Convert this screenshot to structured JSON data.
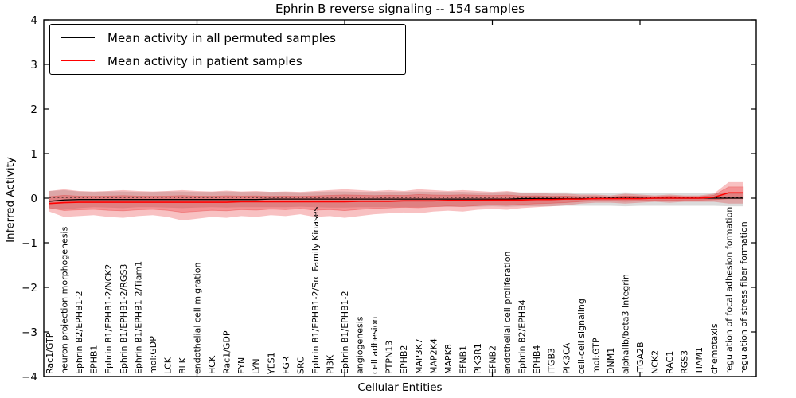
{
  "chart_data": {
    "type": "line",
    "title": "Ephrin B reverse signaling -- 154 samples",
    "xlabel": "Cellular Entities",
    "ylabel": "Inferred Activity",
    "ylim": [
      -4,
      4
    ],
    "ytick_labels": [
      "4",
      "3",
      "2",
      "1",
      "0",
      "−1",
      "−2",
      "−3",
      "−4"
    ],
    "ytick_values": [
      4,
      3,
      2,
      1,
      0,
      -1,
      -2,
      -3,
      -4
    ],
    "xtick_indices": [
      10,
      20,
      30,
      40
    ],
    "grid": false,
    "legend": {
      "position": "upper left",
      "entries": [
        {
          "label": "Mean activity in all permuted samples",
          "color": "#000000"
        },
        {
          "label": "Mean activity in patient samples",
          "color": "#ff0000"
        }
      ]
    },
    "categories": [
      "Rac1/GTP",
      "neuron projection morphogenesis",
      "Ephrin B2/EPHB1-2",
      "EPHB1",
      "Ephrin B1/EPHB1-2/NCK2",
      "Ephrin B1/EPHB1-2/RGS3",
      "Ephrin B1/EPHB1-2/Tiam1",
      "mol:GDP",
      "LCK",
      "BLK",
      "endothelial cell migration",
      "HCK",
      "Rac1/GDP",
      "FYN",
      "LYN",
      "YES1",
      "FGR",
      "SRC",
      "Ephrin B1/EPHB1-2/Src Family Kinases",
      "PI3K",
      "Ephrin B1/EPHB1-2",
      "angiogenesis",
      "cell adhesion",
      "PTPN13",
      "EPHB2",
      "MAP3K7",
      "MAP2K4",
      "MAPK8",
      "EFNB1",
      "PIK3R1",
      "EFNB2",
      "endothelial cell proliferation",
      "Ephrin B2/EPHB4",
      "EPHB4",
      "ITGB3",
      "PIK3CA",
      "cell-cell signaling",
      "mol:GTP",
      "DNM1",
      "alphaIIb/beta3 Integrin",
      "ITGA2B",
      "NCK2",
      "RAC1",
      "RGS3",
      "TIAM1",
      "chemotaxis",
      "regulation of focal adhesion formation",
      "regulation of stress fiber formation"
    ],
    "series": [
      {
        "name": "zero-reference",
        "style": "dotted",
        "color": "#000000",
        "values": [
          0.02,
          0.02,
          0.02,
          0.02,
          0.02,
          0.02,
          0.02,
          0.02,
          0.02,
          0.02,
          0.02,
          0.02,
          0.02,
          0.02,
          0.02,
          0.02,
          0.02,
          0.02,
          0.02,
          0.02,
          0.02,
          0.02,
          0.02,
          0.02,
          0.02,
          0.02,
          0.02,
          0.02,
          0.02,
          0.02,
          0.02,
          0.02,
          0.02,
          0.02,
          0.02,
          0.02,
          0.02,
          0.02,
          0.02,
          0.02,
          0.02,
          0.02,
          0.02,
          0.02,
          0.02,
          0.02,
          0.02,
          0.02
        ]
      },
      {
        "name": "Mean activity in all permuted samples",
        "style": "solid",
        "color": "#000000",
        "values": [
          -0.07,
          -0.04,
          -0.03,
          -0.03,
          -0.03,
          -0.03,
          -0.03,
          -0.03,
          -0.03,
          -0.03,
          -0.03,
          -0.03,
          -0.03,
          -0.03,
          -0.03,
          -0.02,
          -0.02,
          -0.02,
          -0.02,
          -0.02,
          -0.02,
          -0.02,
          -0.02,
          -0.02,
          -0.02,
          -0.02,
          -0.02,
          -0.02,
          -0.02,
          -0.02,
          -0.02,
          -0.02,
          -0.01,
          -0.01,
          -0.01,
          -0.01,
          -0.01,
          -0.01,
          0,
          0,
          0,
          0,
          0,
          0,
          0,
          0,
          0,
          0
        ]
      },
      {
        "name": "Mean activity in patient samples",
        "style": "solid",
        "color": "#ff0000",
        "values": [
          -0.12,
          -0.1,
          -0.09,
          -0.09,
          -0.09,
          -0.09,
          -0.09,
          -0.09,
          -0.09,
          -0.09,
          -0.09,
          -0.09,
          -0.09,
          -0.08,
          -0.08,
          -0.08,
          -0.08,
          -0.08,
          -0.08,
          -0.08,
          -0.08,
          -0.07,
          -0.07,
          -0.07,
          -0.06,
          -0.06,
          -0.06,
          -0.05,
          -0.05,
          -0.05,
          -0.04,
          -0.04,
          -0.04,
          -0.03,
          -0.03,
          -0.02,
          -0.02,
          -0.01,
          -0.01,
          -0.01,
          -0.01,
          0,
          0,
          0,
          0,
          0.02,
          0.12,
          0.12
        ]
      }
    ],
    "bands": [
      {
        "name": "permuted-range",
        "color": "#999999",
        "opacity": 0.35,
        "top": [
          0.16,
          0.18,
          0.15,
          0.14,
          0.15,
          0.15,
          0.14,
          0.14,
          0.15,
          0.15,
          0.14,
          0.14,
          0.15,
          0.14,
          0.14,
          0.14,
          0.14,
          0.13,
          0.14,
          0.15,
          0.15,
          0.14,
          0.14,
          0.14,
          0.14,
          0.15,
          0.14,
          0.14,
          0.14,
          0.13,
          0.13,
          0.14,
          0.13,
          0.13,
          0.13,
          0.13,
          0.12,
          0.12,
          0.12,
          0.13,
          0.12,
          0.12,
          0.12,
          0.12,
          0.12,
          0.12,
          0.13,
          0.13
        ],
        "bottom": [
          -0.22,
          -0.26,
          -0.22,
          -0.2,
          -0.21,
          -0.22,
          -0.2,
          -0.2,
          -0.21,
          -0.22,
          -0.21,
          -0.2,
          -0.21,
          -0.2,
          -0.2,
          -0.2,
          -0.2,
          -0.19,
          -0.2,
          -0.21,
          -0.21,
          -0.2,
          -0.2,
          -0.2,
          -0.2,
          -0.2,
          -0.19,
          -0.19,
          -0.19,
          -0.19,
          -0.18,
          -0.19,
          -0.18,
          -0.18,
          -0.18,
          -0.17,
          -0.17,
          -0.17,
          -0.17,
          -0.18,
          -0.17,
          -0.17,
          -0.17,
          -0.17,
          -0.17,
          -0.17,
          -0.18,
          -0.18
        ]
      },
      {
        "name": "patient-range-outer",
        "color": "#e41a1c",
        "opacity": 0.27,
        "inner_factor": 0.55,
        "top": [
          0.16,
          0.2,
          0.16,
          0.15,
          0.16,
          0.18,
          0.16,
          0.15,
          0.16,
          0.18,
          0.16,
          0.15,
          0.17,
          0.15,
          0.16,
          0.14,
          0.15,
          0.14,
          0.16,
          0.18,
          0.2,
          0.18,
          0.16,
          0.18,
          0.16,
          0.2,
          0.18,
          0.16,
          0.18,
          0.16,
          0.14,
          0.16,
          0.12,
          0.12,
          0.1,
          0.1,
          0.08,
          0.08,
          0.06,
          0.1,
          0.08,
          0.06,
          0.08,
          0.06,
          0.06,
          0.1,
          0.36,
          0.36
        ],
        "bottom": [
          -0.3,
          -0.42,
          -0.4,
          -0.38,
          -0.42,
          -0.44,
          -0.4,
          -0.38,
          -0.42,
          -0.5,
          -0.46,
          -0.42,
          -0.44,
          -0.4,
          -0.42,
          -0.38,
          -0.4,
          -0.36,
          -0.42,
          -0.4,
          -0.44,
          -0.4,
          -0.36,
          -0.34,
          -0.32,
          -0.34,
          -0.3,
          -0.28,
          -0.3,
          -0.26,
          -0.24,
          -0.26,
          -0.22,
          -0.2,
          -0.18,
          -0.16,
          -0.12,
          -0.1,
          -0.1,
          -0.12,
          -0.1,
          -0.08,
          -0.1,
          -0.08,
          -0.08,
          -0.08,
          -0.12,
          -0.12
        ]
      }
    ]
  }
}
